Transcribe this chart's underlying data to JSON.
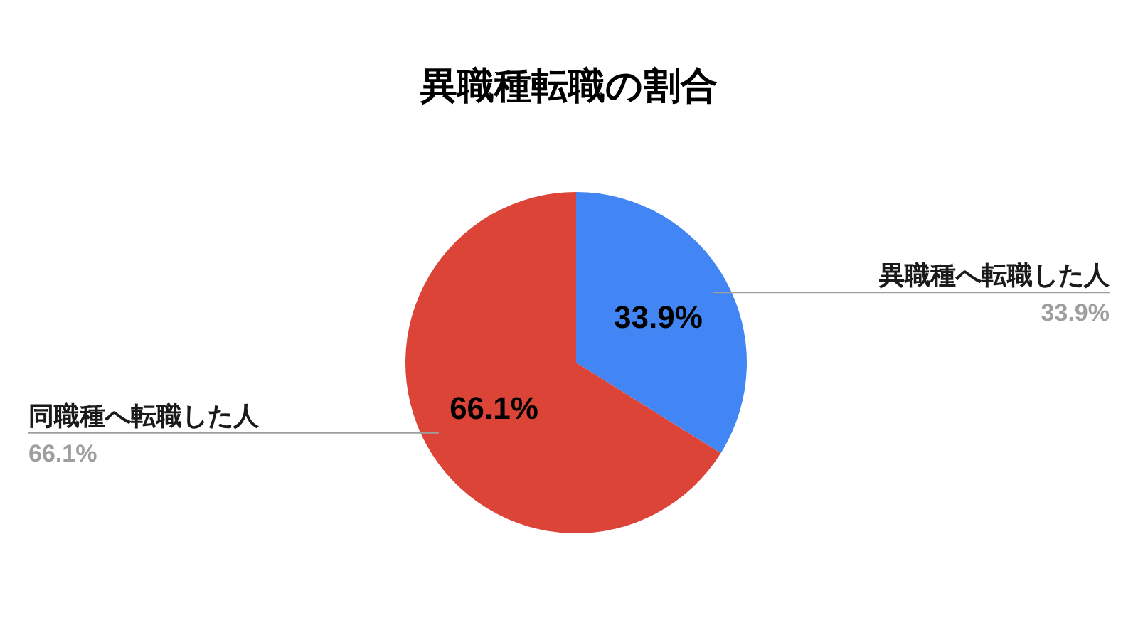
{
  "chart_data": {
    "type": "pie",
    "title": "異職種転職の割合",
    "categories": [
      "異職種へ転職した人",
      "同職種へ転職した人"
    ],
    "values": [
      33.9,
      66.1
    ],
    "value_labels": [
      "33.9%",
      "66.1%"
    ],
    "colors": [
      "#4285f4",
      "#db4437"
    ],
    "data_labels": true
  }
}
